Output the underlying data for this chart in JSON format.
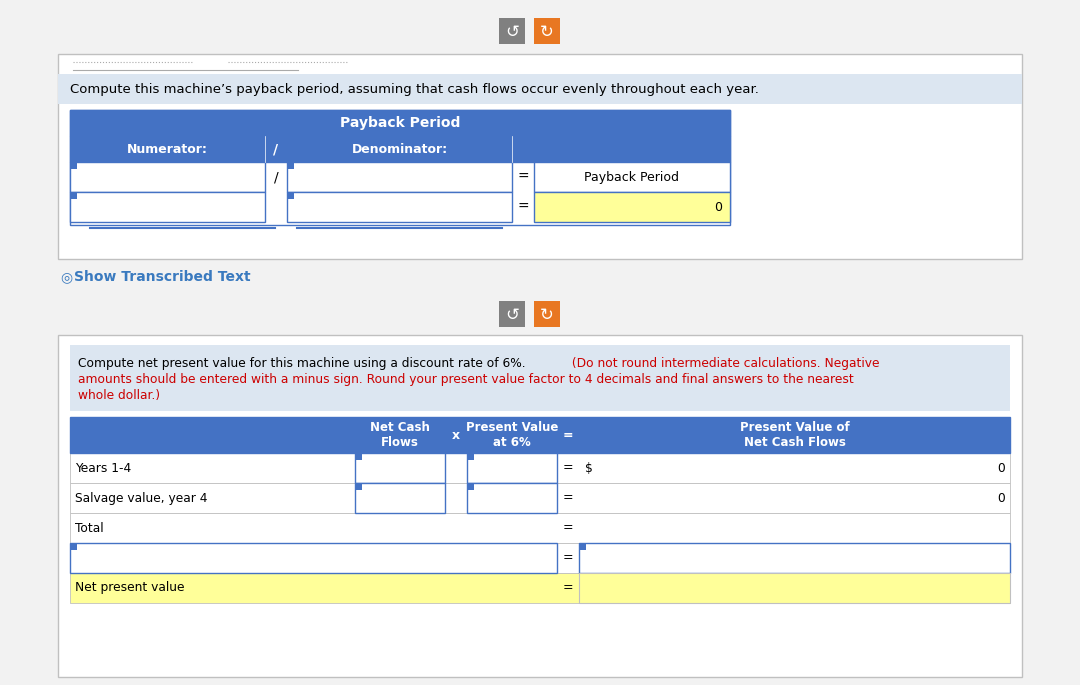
{
  "page_bg": "#f2f2f2",
  "btn1_bg": "#808080",
  "btn2_bg": "#e87722",
  "btn_color": "#ffffff",
  "s1_header_text": "Compute this machine’s payback period, assuming that cash flows occur evenly throughout each year.",
  "s1_table_header": "Payback Period",
  "s1_numerator": "Numerator:",
  "s1_denominator": "Denominator:",
  "s1_payback_label": "Payback Period",
  "s1_payback_value": "0",
  "show_text": "Show Transcribed Text",
  "show_color": "#3a7abf",
  "s2_black_text": "Compute net present value for this machine using a discount rate of 6%.",
  "s2_red_text": "(Do not round intermediate calculations. Negative amounts should be entered with a minus sign. Round your present value factor to 4 decimals and final answers to the nearest whole dollar.)",
  "s2_col2": "Net Cash\nFlows",
  "s2_col3": "x",
  "s2_col4": "Present Value\nat 6%",
  "s2_col5": "=",
  "s2_col6": "Present Value of\nNet Cash Flows",
  "s2_rows": [
    {
      "label": "Years 1-4",
      "has_inputs": true,
      "prefix": "$",
      "value": "0",
      "yellow": false,
      "span_input": false
    },
    {
      "label": "Salvage value, year 4",
      "has_inputs": true,
      "prefix": "",
      "value": "0",
      "yellow": false,
      "span_input": false
    },
    {
      "label": "Total",
      "has_inputs": false,
      "prefix": "",
      "value": "",
      "yellow": false,
      "span_input": false
    },
    {
      "label": "",
      "has_inputs": false,
      "prefix": "",
      "value": "",
      "yellow": false,
      "span_input": true
    },
    {
      "label": "Net present value",
      "has_inputs": false,
      "prefix": "",
      "value": "",
      "yellow": true,
      "span_input": false
    }
  ],
  "blue": "#4472c4",
  "light_blue_bg": "#dce6f1",
  "yellow_bg": "#ffff99",
  "white": "#ffffff",
  "border_gray": "#c0c0c0",
  "border_blue": "#4472c4"
}
